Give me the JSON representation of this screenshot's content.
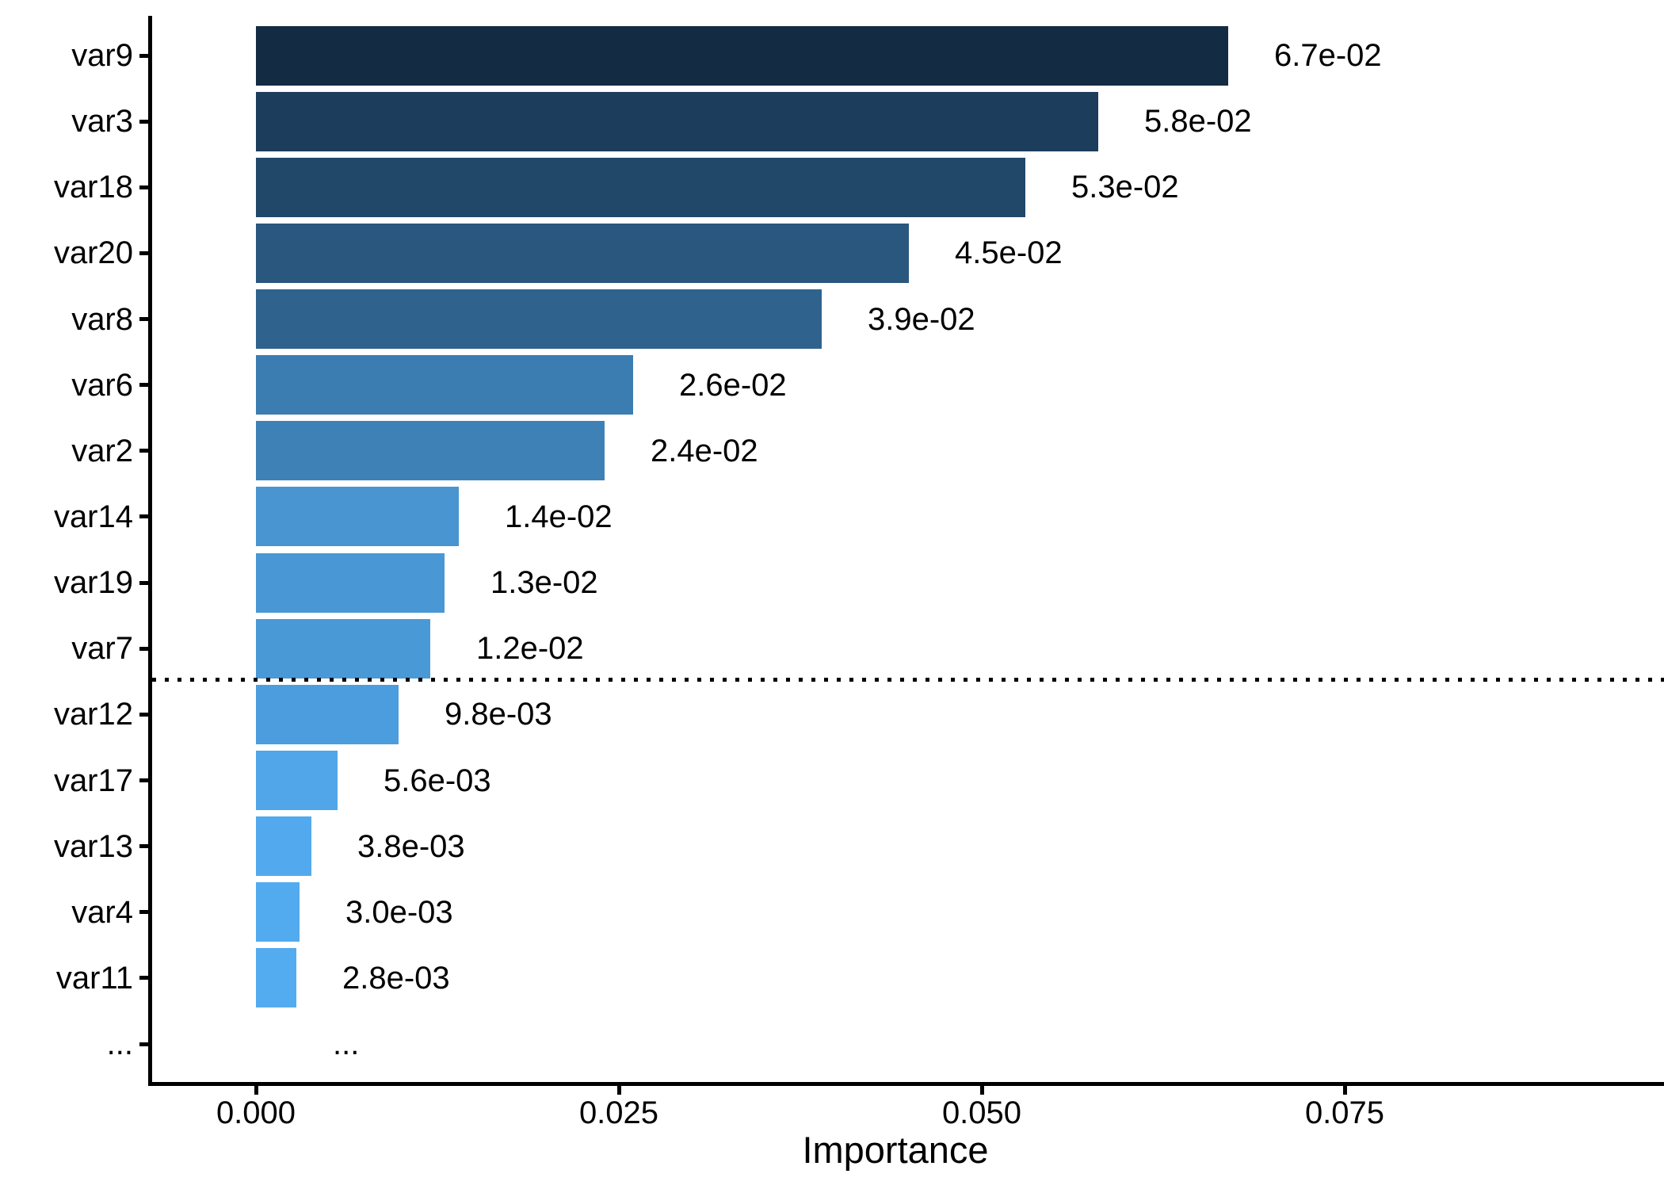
{
  "chart_data": {
    "type": "bar",
    "orientation": "horizontal",
    "title": "",
    "xlabel": "Importance",
    "ylabel": "",
    "xlim": [
      0,
      0.0975
    ],
    "grid": false,
    "legend": "none",
    "x_ticks": [
      {
        "label": "0.000",
        "value": 0.0
      },
      {
        "label": "0.025",
        "value": 0.025
      },
      {
        "label": "0.050",
        "value": 0.05
      },
      {
        "label": "0.075",
        "value": 0.075
      }
    ],
    "bars": [
      {
        "label": "var9",
        "value": 0.067,
        "value_label": "6.7e-02",
        "color": "#132B43"
      },
      {
        "label": "var3",
        "value": 0.058,
        "value_label": "5.8e-02",
        "color": "#1C3D5B"
      },
      {
        "label": "var18",
        "value": 0.053,
        "value_label": "5.3e-02",
        "color": "#214769"
      },
      {
        "label": "var20",
        "value": 0.045,
        "value_label": "4.5e-02",
        "color": "#29577E"
      },
      {
        "label": "var8",
        "value": 0.039,
        "value_label": "3.9e-02",
        "color": "#2F638E"
      },
      {
        "label": "var6",
        "value": 0.026,
        "value_label": "2.6e-02",
        "color": "#3C7DB1"
      },
      {
        "label": "var2",
        "value": 0.024,
        "value_label": "2.4e-02",
        "color": "#3E81B7"
      },
      {
        "label": "var14",
        "value": 0.014,
        "value_label": "1.4e-02",
        "color": "#4895D1"
      },
      {
        "label": "var19",
        "value": 0.013,
        "value_label": "1.3e-02",
        "color": "#4997D4"
      },
      {
        "label": "var7",
        "value": 0.012,
        "value_label": "1.2e-02",
        "color": "#4A99D7"
      },
      {
        "label": "var12",
        "value": 0.0098,
        "value_label": "9.8e-03",
        "color": "#4C9DDD"
      },
      {
        "label": "var17",
        "value": 0.0056,
        "value_label": "5.6e-03",
        "color": "#50A6E8"
      },
      {
        "label": "var13",
        "value": 0.0038,
        "value_label": "3.8e-03",
        "color": "#52A9ED"
      },
      {
        "label": "var4",
        "value": 0.003,
        "value_label": "3.0e-03",
        "color": "#53ABEF"
      },
      {
        "label": "var11",
        "value": 0.0028,
        "value_label": "2.8e-03",
        "color": "#53ABF0"
      }
    ],
    "overflow_row": {
      "axis_label": "...",
      "value_label": "..."
    },
    "cutoff_line": {
      "style": "dotted",
      "color": "#000000",
      "between": [
        "var7",
        "var12"
      ]
    },
    "fill_gradient": {
      "high_value_color": "#132B43",
      "low_value_color": "#56B1F7"
    }
  },
  "colors": {
    "background": "#FFFFFF",
    "axis": "#000000",
    "text": "#000000"
  }
}
